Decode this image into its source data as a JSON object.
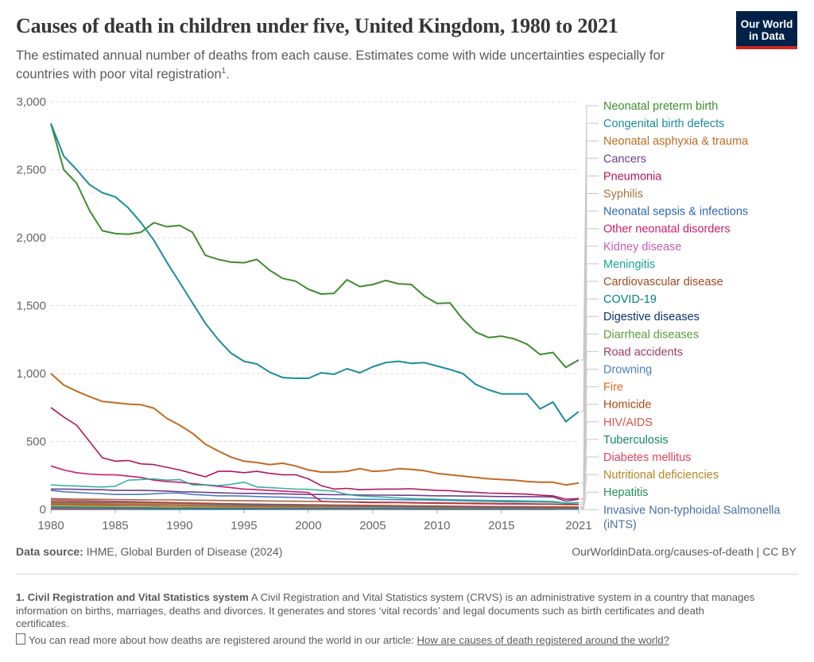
{
  "header": {
    "title": "Causes of death in children under five, United Kingdom, 1980 to 2021",
    "subtitle_main": "The estimated annual number of deaths from each cause. Estimates come with wide uncertainties especially for countries with poor vital registration",
    "subtitle_note": "1",
    "subtitle_end": "."
  },
  "logo": {
    "line1": "Our World",
    "line2": "in Data"
  },
  "footer": {
    "source_label": "Data source:",
    "source_text": "IHME, Global Burden of Disease (2024)",
    "url": "OurWorldinData.org/causes-of-death | CC BY",
    "footnote_title": "1. Civil Registration and Vital Statistics system",
    "footnote_text": "A Civil Registration and Vital Statistics system (CRVS) is an administrative system in a country that manages information on births, marriages, deaths and divorces. It generates and stores ‘vital records’ and legal documents such as birth certificates and death certificates.",
    "readmore_text": "You can read more about how deaths are registered around the world in our article:",
    "readmore_link": "How are causes of death registered around the world?"
  },
  "chart_data": {
    "type": "line",
    "x": [
      1980,
      1981,
      1982,
      1983,
      1984,
      1985,
      1986,
      1987,
      1988,
      1989,
      1990,
      1991,
      1992,
      1993,
      1994,
      1995,
      1996,
      1997,
      1998,
      1999,
      2000,
      2001,
      2002,
      2003,
      2004,
      2005,
      2006,
      2007,
      2008,
      2009,
      2010,
      2011,
      2012,
      2013,
      2014,
      2015,
      2016,
      2017,
      2018,
      2019,
      2020,
      2021
    ],
    "xlim": [
      1980,
      2021
    ],
    "ylim": [
      0,
      3000
    ],
    "yticks": [
      0,
      500,
      1000,
      1500,
      2000,
      2500,
      3000
    ],
    "ytick_labels": [
      "0",
      "500",
      "1,000",
      "1,500",
      "2,000",
      "2,500",
      "3,000"
    ],
    "xticks": [
      1980,
      1985,
      1990,
      1995,
      2000,
      2005,
      2010,
      2015,
      2021
    ],
    "series": [
      {
        "name": "Neonatal preterm birth",
        "color": "#3e8d2e",
        "values": [
          2840,
          2500,
          2400,
          2200,
          2050,
          2030,
          2025,
          2040,
          2110,
          2080,
          2090,
          2040,
          1870,
          1840,
          1820,
          1815,
          1840,
          1760,
          1700,
          1680,
          1620,
          1585,
          1590,
          1690,
          1640,
          1655,
          1685,
          1660,
          1655,
          1570,
          1515,
          1520,
          1400,
          1305,
          1265,
          1275,
          1255,
          1215,
          1140,
          1155,
          1045,
          1100
        ]
      },
      {
        "name": "Congenital birth defects",
        "color": "#1c8c9c",
        "values": [
          2840,
          2600,
          2500,
          2390,
          2330,
          2300,
          2220,
          2110,
          1980,
          1820,
          1670,
          1520,
          1370,
          1250,
          1150,
          1090,
          1070,
          1010,
          970,
          965,
          965,
          1005,
          995,
          1035,
          1005,
          1050,
          1080,
          1090,
          1075,
          1080,
          1055,
          1030,
          1000,
          920,
          880,
          850,
          850,
          850,
          740,
          790,
          645,
          720
        ]
      },
      {
        "name": "Neonatal asphyxia & trauma",
        "color": "#c06b22",
        "values": [
          1000,
          915,
          870,
          830,
          795,
          785,
          775,
          770,
          745,
          670,
          620,
          560,
          480,
          430,
          385,
          355,
          345,
          330,
          340,
          320,
          290,
          275,
          275,
          280,
          300,
          280,
          285,
          300,
          295,
          285,
          265,
          255,
          245,
          235,
          225,
          220,
          215,
          205,
          200,
          200,
          180,
          195
        ]
      },
      {
        "name": "Cancers",
        "color": "#6d3e91",
        "values": [
          150,
          150,
          148,
          145,
          145,
          140,
          140,
          140,
          138,
          135,
          130,
          128,
          125,
          122,
          120,
          118,
          118,
          115,
          115,
          112,
          110,
          110,
          108,
          108,
          106,
          105,
          105,
          104,
          104,
          102,
          100,
          100,
          98,
          98,
          96,
          95,
          95,
          94,
          93,
          92,
          60,
          75
        ]
      },
      {
        "name": "Pneumonia",
        "color": "#b0185c",
        "values": [
          750,
          680,
          620,
          500,
          380,
          355,
          360,
          335,
          330,
          310,
          290,
          265,
          240,
          280,
          280,
          270,
          280,
          265,
          255,
          255,
          225,
          175,
          150,
          155,
          145,
          148,
          150,
          150,
          152,
          145,
          140,
          138,
          130,
          125,
          120,
          118,
          115,
          112,
          105,
          100,
          75,
          80
        ]
      },
      {
        "name": "Syphilis",
        "color": "#a2753a",
        "values": [
          60,
          58,
          57,
          56,
          55,
          54,
          52,
          50,
          50,
          48,
          46,
          44,
          42,
          40,
          38,
          36,
          34,
          32,
          30,
          30,
          28,
          27,
          26,
          25,
          24,
          23,
          22,
          21,
          20,
          19,
          18,
          18,
          17,
          16,
          15,
          15,
          14,
          14,
          13,
          13,
          12,
          12
        ]
      },
      {
        "name": "Neonatal sepsis & infections",
        "color": "#2c66ad",
        "values": [
          140,
          130,
          125,
          120,
          115,
          110,
          110,
          110,
          115,
          120,
          120,
          110,
          105,
          100,
          100,
          98,
          95,
          92,
          90,
          88,
          85,
          80,
          78,
          76,
          75,
          74,
          73,
          72,
          71,
          70,
          68,
          66,
          64,
          62,
          60,
          58,
          57,
          56,
          55,
          54,
          45,
          50
        ]
      },
      {
        "name": "Other neonatal disorders",
        "color": "#d01a6b",
        "values": [
          320,
          290,
          270,
          260,
          255,
          255,
          245,
          235,
          215,
          205,
          200,
          190,
          180,
          170,
          160,
          150,
          145,
          140,
          135,
          130,
          125,
          60,
          55,
          55,
          52,
          50,
          50,
          50,
          48,
          46,
          45,
          44,
          43,
          42,
          41,
          40,
          40,
          39,
          38,
          38,
          35,
          36
        ]
      },
      {
        "name": "Kidney disease",
        "color": "#c15fb3",
        "values": [
          40,
          39,
          38,
          37,
          36,
          35,
          35,
          34,
          34,
          33,
          33,
          32,
          32,
          31,
          31,
          30,
          30,
          29,
          29,
          28,
          28,
          27,
          27,
          26,
          26,
          25,
          25,
          24,
          24,
          23,
          23,
          22,
          22,
          21,
          21,
          20,
          20,
          20,
          19,
          19,
          18,
          18
        ]
      },
      {
        "name": "Meningitis",
        "color": "#18a394",
        "values": [
          180,
          175,
          172,
          168,
          165,
          170,
          215,
          220,
          225,
          215,
          220,
          180,
          180,
          175,
          185,
          200,
          165,
          160,
          155,
          150,
          148,
          140,
          135,
          110,
          100,
          95,
          90,
          85,
          80,
          78,
          75,
          72,
          70,
          68,
          66,
          65,
          64,
          62,
          60,
          58,
          45,
          50
        ]
      },
      {
        "name": "Cardiovascular disease",
        "color": "#9d4a26",
        "values": [
          80,
          78,
          76,
          75,
          74,
          73,
          72,
          71,
          70,
          70,
          69,
          68,
          67,
          66,
          65,
          64,
          63,
          62,
          61,
          60,
          59,
          58,
          57,
          56,
          55,
          54,
          53,
          52,
          51,
          50,
          49,
          48,
          47,
          46,
          45,
          44,
          43,
          42,
          41,
          40,
          35,
          38
        ]
      },
      {
        "name": "COVID-19",
        "color": "#00847e",
        "values": [
          0,
          0,
          0,
          0,
          0,
          0,
          0,
          0,
          0,
          0,
          0,
          0,
          0,
          0,
          0,
          0,
          0,
          0,
          0,
          0,
          0,
          0,
          0,
          0,
          0,
          0,
          0,
          0,
          0,
          0,
          0,
          0,
          0,
          0,
          0,
          0,
          0,
          0,
          0,
          0,
          5,
          8
        ]
      },
      {
        "name": "Digestive diseases",
        "color": "#0b2f6b",
        "values": [
          35,
          35,
          34,
          34,
          33,
          33,
          32,
          32,
          31,
          31,
          30,
          30,
          29,
          29,
          28,
          28,
          27,
          27,
          26,
          26,
          25,
          25,
          24,
          24,
          23,
          23,
          22,
          22,
          21,
          21,
          20,
          20,
          19,
          19,
          18,
          18,
          17,
          17,
          16,
          16,
          15,
          15
        ]
      },
      {
        "name": "Diarrheal diseases",
        "color": "#5a9a3b",
        "values": [
          50,
          48,
          46,
          44,
          42,
          40,
          38,
          36,
          34,
          32,
          30,
          28,
          26,
          24,
          22,
          20,
          19,
          18,
          17,
          16,
          15,
          14,
          13,
          12,
          12,
          11,
          11,
          10,
          10,
          10,
          9,
          9,
          9,
          8,
          8,
          8,
          7,
          7,
          7,
          7,
          6,
          6
        ]
      },
      {
        "name": "Road accidents",
        "color": "#9a3e6b",
        "values": [
          70,
          68,
          66,
          64,
          62,
          60,
          58,
          56,
          54,
          52,
          50,
          48,
          46,
          44,
          42,
          40,
          38,
          36,
          34,
          32,
          30,
          28,
          27,
          26,
          25,
          24,
          23,
          22,
          21,
          20,
          19,
          18,
          17,
          16,
          15,
          14,
          13,
          12,
          12,
          11,
          9,
          10
        ]
      },
      {
        "name": "Drowning",
        "color": "#4c7fbf",
        "values": [
          45,
          44,
          43,
          42,
          41,
          40,
          39,
          38,
          37,
          36,
          35,
          34,
          33,
          32,
          31,
          30,
          29,
          28,
          27,
          26,
          25,
          24,
          23,
          22,
          21,
          20,
          19,
          18,
          17,
          16,
          15,
          14,
          13,
          12,
          12,
          11,
          11,
          10,
          10,
          9,
          9,
          9
        ]
      },
      {
        "name": "Fire",
        "color": "#e0671a",
        "values": [
          40,
          39,
          38,
          37,
          36,
          35,
          34,
          33,
          32,
          31,
          30,
          28,
          26,
          24,
          22,
          20,
          19,
          18,
          17,
          16,
          15,
          14,
          13,
          12,
          11,
          10,
          10,
          9,
          9,
          8,
          8,
          7,
          7,
          6,
          6,
          6,
          5,
          5,
          5,
          5,
          4,
          4
        ]
      },
      {
        "name": "Homicide",
        "color": "#b34a12",
        "values": [
          55,
          54,
          53,
          52,
          51,
          50,
          49,
          48,
          47,
          46,
          45,
          44,
          43,
          42,
          41,
          40,
          39,
          38,
          37,
          36,
          35,
          34,
          33,
          32,
          31,
          30,
          29,
          28,
          27,
          26,
          25,
          24,
          23,
          22,
          21,
          20,
          20,
          19,
          19,
          18,
          17,
          17
        ]
      },
      {
        "name": "HIV/AIDS",
        "color": "#d9534f",
        "values": [
          0,
          0,
          0,
          0,
          1,
          2,
          3,
          4,
          5,
          6,
          7,
          8,
          8,
          8,
          7,
          6,
          5,
          4,
          4,
          3,
          3,
          3,
          2,
          2,
          2,
          2,
          2,
          2,
          1,
          1,
          1,
          1,
          1,
          1,
          1,
          1,
          1,
          1,
          1,
          1,
          1,
          1
        ]
      },
      {
        "name": "Tuberculosis",
        "color": "#0f8a5f",
        "values": [
          20,
          19,
          18,
          17,
          16,
          15,
          14,
          13,
          12,
          11,
          10,
          10,
          9,
          9,
          8,
          8,
          7,
          7,
          6,
          6,
          6,
          5,
          5,
          5,
          5,
          4,
          4,
          4,
          4,
          3,
          3,
          3,
          3,
          3,
          3,
          2,
          2,
          2,
          2,
          2,
          2,
          2
        ]
      },
      {
        "name": "Diabetes mellitus",
        "color": "#e0435e",
        "values": [
          10,
          10,
          10,
          9,
          9,
          9,
          9,
          8,
          8,
          8,
          8,
          8,
          7,
          7,
          7,
          7,
          7,
          6,
          6,
          6,
          6,
          6,
          6,
          5,
          5,
          5,
          5,
          5,
          5,
          5,
          4,
          4,
          4,
          4,
          4,
          4,
          4,
          4,
          3,
          3,
          3,
          3
        ]
      },
      {
        "name": "Nutritional deficiencies",
        "color": "#b7851f",
        "values": [
          30,
          29,
          28,
          27,
          26,
          25,
          24,
          23,
          22,
          21,
          20,
          19,
          18,
          17,
          16,
          15,
          14,
          13,
          12,
          12,
          11,
          11,
          10,
          10,
          9,
          9,
          9,
          8,
          8,
          8,
          7,
          7,
          7,
          6,
          6,
          6,
          6,
          5,
          5,
          5,
          5,
          5
        ]
      },
      {
        "name": "Hepatitis",
        "color": "#268f5a",
        "values": [
          12,
          12,
          11,
          11,
          11,
          10,
          10,
          10,
          9,
          9,
          9,
          8,
          8,
          8,
          8,
          7,
          7,
          7,
          7,
          6,
          6,
          6,
          6,
          6,
          5,
          5,
          5,
          5,
          5,
          5,
          4,
          4,
          4,
          4,
          4,
          4,
          4,
          3,
          3,
          3,
          3,
          3
        ]
      },
      {
        "name": "Invasive Non-typhoidal Salmonella (iNTS)",
        "color": "#4a6fa5",
        "values": [
          8,
          8,
          8,
          7,
          7,
          7,
          7,
          6,
          6,
          6,
          6,
          6,
          5,
          5,
          5,
          5,
          5,
          5,
          4,
          4,
          4,
          4,
          4,
          4,
          4,
          3,
          3,
          3,
          3,
          3,
          3,
          3,
          3,
          2,
          2,
          2,
          2,
          2,
          2,
          2,
          2,
          2
        ]
      }
    ]
  }
}
